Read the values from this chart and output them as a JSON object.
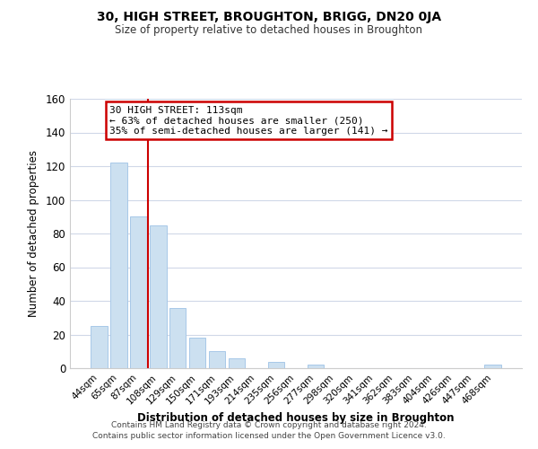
{
  "title": "30, HIGH STREET, BROUGHTON, BRIGG, DN20 0JA",
  "subtitle": "Size of property relative to detached houses in Broughton",
  "xlabel": "Distribution of detached houses by size in Broughton",
  "ylabel": "Number of detached properties",
  "bar_labels": [
    "44sqm",
    "65sqm",
    "87sqm",
    "108sqm",
    "129sqm",
    "150sqm",
    "171sqm",
    "193sqm",
    "214sqm",
    "235sqm",
    "256sqm",
    "277sqm",
    "298sqm",
    "320sqm",
    "341sqm",
    "362sqm",
    "383sqm",
    "404sqm",
    "426sqm",
    "447sqm",
    "468sqm"
  ],
  "bar_values": [
    25,
    122,
    90,
    85,
    36,
    18,
    10,
    6,
    0,
    4,
    0,
    2,
    0,
    0,
    0,
    0,
    0,
    0,
    0,
    0,
    2
  ],
  "bar_color": "#cce0f0",
  "bar_edge_color": "#a8c8e8",
  "vline_color": "#cc0000",
  "ylim": [
    0,
    160
  ],
  "yticks": [
    0,
    20,
    40,
    60,
    80,
    100,
    120,
    140,
    160
  ],
  "annotation_title": "30 HIGH STREET: 113sqm",
  "annotation_line1": "← 63% of detached houses are smaller (250)",
  "annotation_line2": "35% of semi-detached houses are larger (141) →",
  "annotation_box_color": "#ffffff",
  "annotation_box_edge": "#cc0000",
  "footer_line1": "Contains HM Land Registry data © Crown copyright and database right 2024.",
  "footer_line2": "Contains public sector information licensed under the Open Government Licence v3.0.",
  "background_color": "#ffffff",
  "grid_color": "#d0d8e8"
}
